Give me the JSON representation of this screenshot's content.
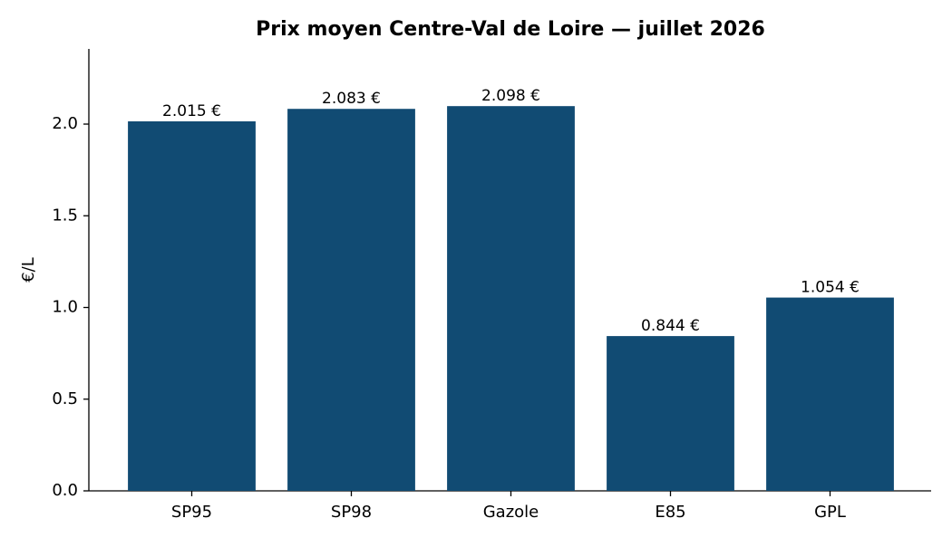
{
  "chart_data": {
    "type": "bar",
    "title": "Prix moyen Centre-Val de Loire — juillet 2026",
    "y_label": "€/L",
    "categories": [
      "SP95",
      "SP98",
      "Gazole",
      "E85",
      "GPL"
    ],
    "values": [
      2.015,
      2.083,
      2.098,
      0.844,
      1.054
    ],
    "value_labels": [
      "2.015 €",
      "2.083 €",
      "2.098 €",
      "0.844 €",
      "1.054 €"
    ],
    "color": "#114b73",
    "ylim": [
      0,
      2.41
    ],
    "yticks": [
      {
        "value": 0,
        "label": "0.0"
      },
      0.5,
      {
        "value": 1,
        "label": "1.0"
      },
      1.5,
      {
        "value": 2,
        "label": "2.0"
      }
    ],
    "grid": false
  }
}
